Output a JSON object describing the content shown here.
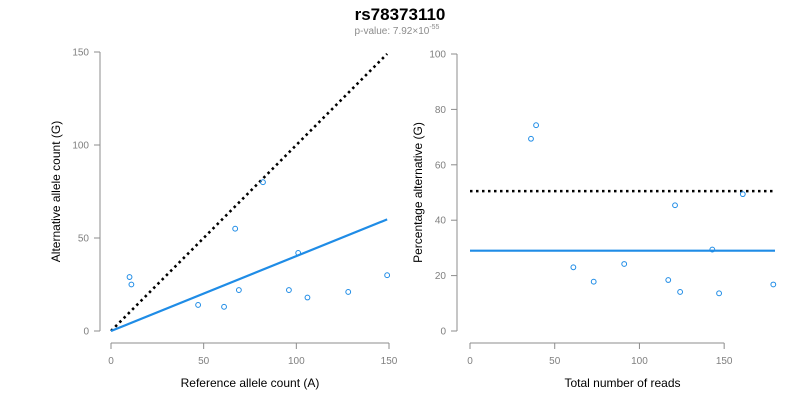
{
  "figure": {
    "title": "rs78373110",
    "subtitle_prefix": "p-value: 7.92×10",
    "subtitle_exponent": "-55"
  },
  "colors": {
    "points": "#1f8ce6",
    "fit_line": "#1f8ce6",
    "reference_line": "#000000"
  },
  "chart_data": [
    {
      "type": "scatter",
      "title": "",
      "xlabel": "Reference allele count (A)",
      "ylabel": "Alternative allele count (G)",
      "xlim": [
        0,
        150
      ],
      "ylim": [
        0,
        150
      ],
      "xticks": [
        0,
        50,
        100,
        150
      ],
      "yticks": [
        0,
        50,
        100,
        150
      ],
      "grid": false,
      "series": [
        {
          "x": [
            10,
            11,
            47,
            61,
            67,
            69,
            82,
            96,
            101,
            106,
            128,
            149
          ],
          "y": [
            29,
            25,
            14,
            13,
            55,
            22,
            80,
            22,
            42,
            18,
            21,
            30
          ]
        }
      ],
      "lines": [
        {
          "style": "dotted",
          "color": "#000000",
          "x": [
            0,
            149
          ],
          "y": [
            0,
            149
          ]
        },
        {
          "style": "solid",
          "color": "#1f8ce6",
          "x": [
            0,
            149
          ],
          "y": [
            0,
            60
          ]
        }
      ]
    },
    {
      "type": "scatter",
      "title": "",
      "xlabel": "Total number of reads",
      "ylabel": "Percentage alternative (G)",
      "xlim": [
        0,
        180
      ],
      "ylim": [
        0,
        100
      ],
      "xticks": [
        0,
        50,
        100,
        150
      ],
      "yticks": [
        0,
        20,
        40,
        60,
        80,
        100
      ],
      "grid": false,
      "series": [
        {
          "x": [
            36,
            39,
            61,
            73,
            91,
            117,
            121,
            124,
            143,
            147,
            161,
            179
          ],
          "y": [
            69.4,
            74.3,
            23.0,
            17.8,
            24.2,
            18.4,
            45.4,
            14.1,
            29.4,
            13.6,
            49.4,
            16.8
          ]
        }
      ],
      "lines": [
        {
          "style": "dotted",
          "color": "#000000",
          "x": [
            0,
            180
          ],
          "y": [
            50.5,
            50.5
          ]
        },
        {
          "style": "solid",
          "color": "#1f8ce6",
          "x": [
            0,
            180
          ],
          "y": [
            29,
            29
          ]
        }
      ]
    }
  ]
}
